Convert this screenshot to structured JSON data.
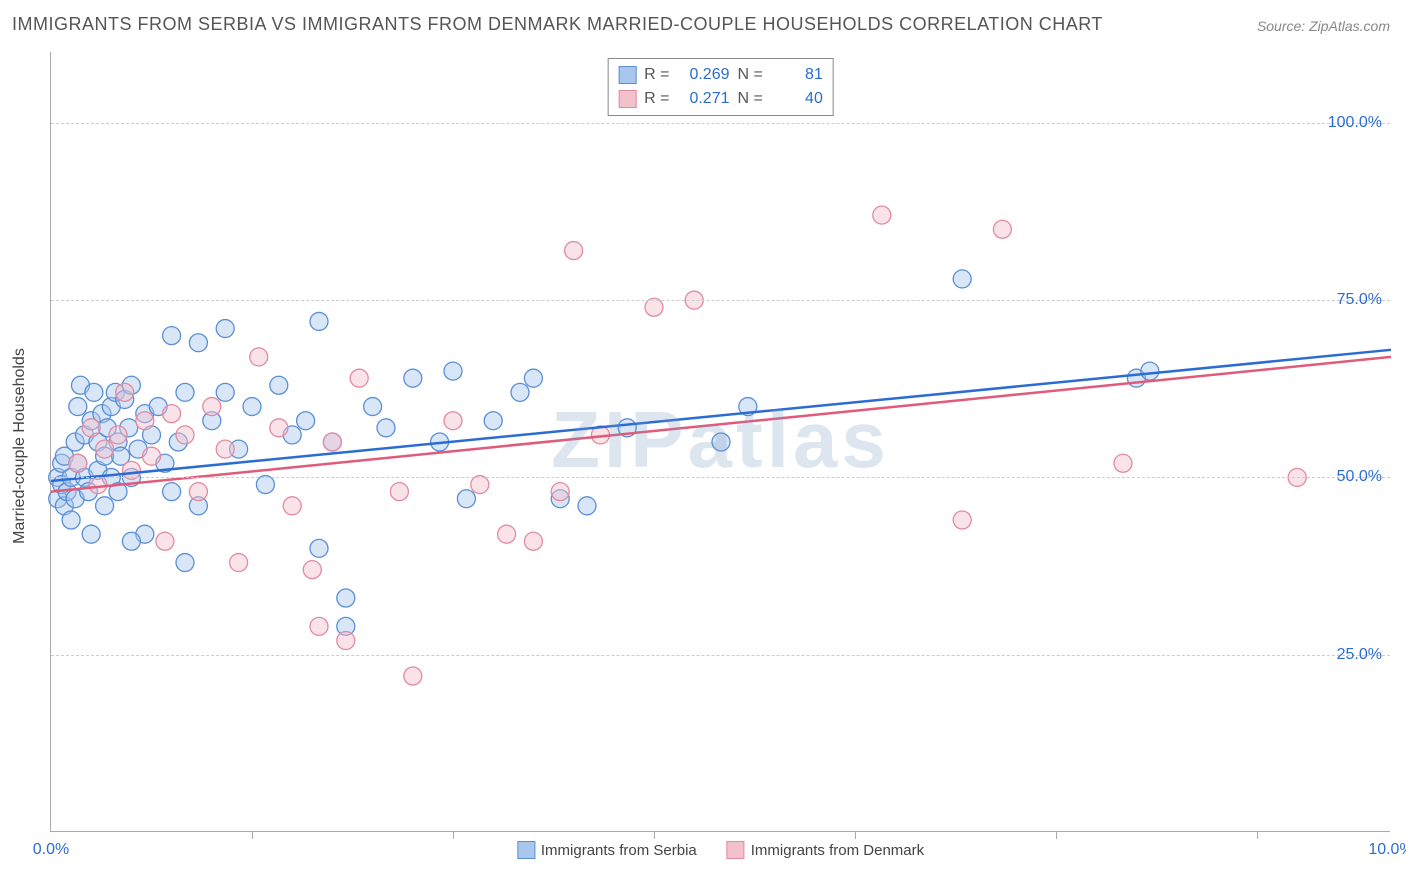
{
  "title": "IMMIGRANTS FROM SERBIA VS IMMIGRANTS FROM DENMARK MARRIED-COUPLE HOUSEHOLDS CORRELATION CHART",
  "source": "Source: ZipAtlas.com",
  "watermark": "ZIPatlas",
  "y_axis_label": "Married-couple Households",
  "chart": {
    "type": "scatter",
    "xlim": [
      0,
      10
    ],
    "ylim": [
      0,
      110
    ],
    "x_ticks": [
      0,
      10
    ],
    "x_tick_labels": [
      "0.0%",
      "10.0%"
    ],
    "x_minor_ticks": [
      1.5,
      3.0,
      4.5,
      6.0,
      7.5,
      9.0
    ],
    "y_ticks": [
      25,
      50,
      75,
      100
    ],
    "y_tick_labels": [
      "25.0%",
      "50.0%",
      "75.0%",
      "100.0%"
    ],
    "background_color": "#ffffff",
    "grid_color": "#cccccc",
    "marker_radius": 9,
    "marker_opacity": 0.45,
    "line_width": 2.5,
    "series": [
      {
        "name": "Immigrants from Serbia",
        "fill": "#a9c7ee",
        "stroke": "#5a8fd6",
        "line_color": "#2b6cd4",
        "R": "0.269",
        "N": "81",
        "trend": {
          "y_at_x0": 49.5,
          "y_at_x10": 68.0
        },
        "points": [
          [
            0.05,
            50
          ],
          [
            0.05,
            47
          ],
          [
            0.08,
            52
          ],
          [
            0.08,
            49
          ],
          [
            0.1,
            46
          ],
          [
            0.1,
            53
          ],
          [
            0.12,
            48
          ],
          [
            0.15,
            50
          ],
          [
            0.15,
            44
          ],
          [
            0.18,
            55
          ],
          [
            0.18,
            47
          ],
          [
            0.2,
            60
          ],
          [
            0.2,
            52
          ],
          [
            0.22,
            63
          ],
          [
            0.25,
            56
          ],
          [
            0.25,
            50
          ],
          [
            0.28,
            48
          ],
          [
            0.3,
            58
          ],
          [
            0.3,
            42
          ],
          [
            0.32,
            62
          ],
          [
            0.35,
            55
          ],
          [
            0.35,
            51
          ],
          [
            0.38,
            59
          ],
          [
            0.4,
            53
          ],
          [
            0.4,
            46
          ],
          [
            0.42,
            57
          ],
          [
            0.45,
            60
          ],
          [
            0.45,
            50
          ],
          [
            0.48,
            62
          ],
          [
            0.5,
            55
          ],
          [
            0.5,
            48
          ],
          [
            0.52,
            53
          ],
          [
            0.55,
            61
          ],
          [
            0.58,
            57
          ],
          [
            0.6,
            63
          ],
          [
            0.6,
            50
          ],
          [
            0.65,
            54
          ],
          [
            0.7,
            59
          ],
          [
            0.7,
            42
          ],
          [
            0.75,
            56
          ],
          [
            0.8,
            60
          ],
          [
            0.85,
            52
          ],
          [
            0.9,
            70
          ],
          [
            0.9,
            48
          ],
          [
            0.95,
            55
          ],
          [
            1.0,
            62
          ],
          [
            1.0,
            38
          ],
          [
            1.1,
            69
          ],
          [
            1.1,
            46
          ],
          [
            1.2,
            58
          ],
          [
            1.3,
            71
          ],
          [
            1.3,
            62
          ],
          [
            1.4,
            54
          ],
          [
            1.5,
            60
          ],
          [
            1.6,
            49
          ],
          [
            1.7,
            63
          ],
          [
            1.8,
            56
          ],
          [
            1.9,
            58
          ],
          [
            2.0,
            72
          ],
          [
            2.0,
            40
          ],
          [
            2.1,
            55
          ],
          [
            2.2,
            33
          ],
          [
            2.2,
            29
          ],
          [
            2.4,
            60
          ],
          [
            2.5,
            57
          ],
          [
            2.7,
            64
          ],
          [
            2.9,
            55
          ],
          [
            3.0,
            65
          ],
          [
            3.1,
            47
          ],
          [
            3.3,
            58
          ],
          [
            3.5,
            62
          ],
          [
            3.6,
            64
          ],
          [
            3.8,
            47
          ],
          [
            4.0,
            46
          ],
          [
            4.3,
            57
          ],
          [
            5.0,
            55
          ],
          [
            5.2,
            60
          ],
          [
            6.8,
            78
          ],
          [
            8.1,
            64
          ],
          [
            8.2,
            65
          ],
          [
            0.6,
            41
          ]
        ]
      },
      {
        "name": "Immigrants from Denmark",
        "fill": "#f3c1cc",
        "stroke": "#e28aa0",
        "line_color": "#e05a7a",
        "R": "0.271",
        "N": "40",
        "trend": {
          "y_at_x0": 48.0,
          "y_at_x10": 67.0
        },
        "points": [
          [
            0.2,
            52
          ],
          [
            0.3,
            57
          ],
          [
            0.35,
            49
          ],
          [
            0.4,
            54
          ],
          [
            0.5,
            56
          ],
          [
            0.55,
            62
          ],
          [
            0.6,
            51
          ],
          [
            0.7,
            58
          ],
          [
            0.75,
            53
          ],
          [
            0.85,
            41
          ],
          [
            0.9,
            59
          ],
          [
            1.0,
            56
          ],
          [
            1.1,
            48
          ],
          [
            1.2,
            60
          ],
          [
            1.3,
            54
          ],
          [
            1.4,
            38
          ],
          [
            1.55,
            67
          ],
          [
            1.7,
            57
          ],
          [
            1.8,
            46
          ],
          [
            1.95,
            37
          ],
          [
            2.0,
            29
          ],
          [
            2.1,
            55
          ],
          [
            2.2,
            27
          ],
          [
            2.3,
            64
          ],
          [
            2.6,
            48
          ],
          [
            2.7,
            22
          ],
          [
            3.0,
            58
          ],
          [
            3.2,
            49
          ],
          [
            3.4,
            42
          ],
          [
            3.6,
            41
          ],
          [
            3.8,
            48
          ],
          [
            3.9,
            82
          ],
          [
            4.1,
            56
          ],
          [
            4.5,
            74
          ],
          [
            4.8,
            75
          ],
          [
            6.2,
            87
          ],
          [
            6.8,
            44
          ],
          [
            7.1,
            85
          ],
          [
            8.0,
            52
          ],
          [
            9.3,
            50
          ]
        ]
      }
    ]
  },
  "legend_top_labels": {
    "R": "R =",
    "N": "N ="
  },
  "bottom_legend_labels": [
    "Immigrants from Serbia",
    "Immigrants from Denmark"
  ]
}
